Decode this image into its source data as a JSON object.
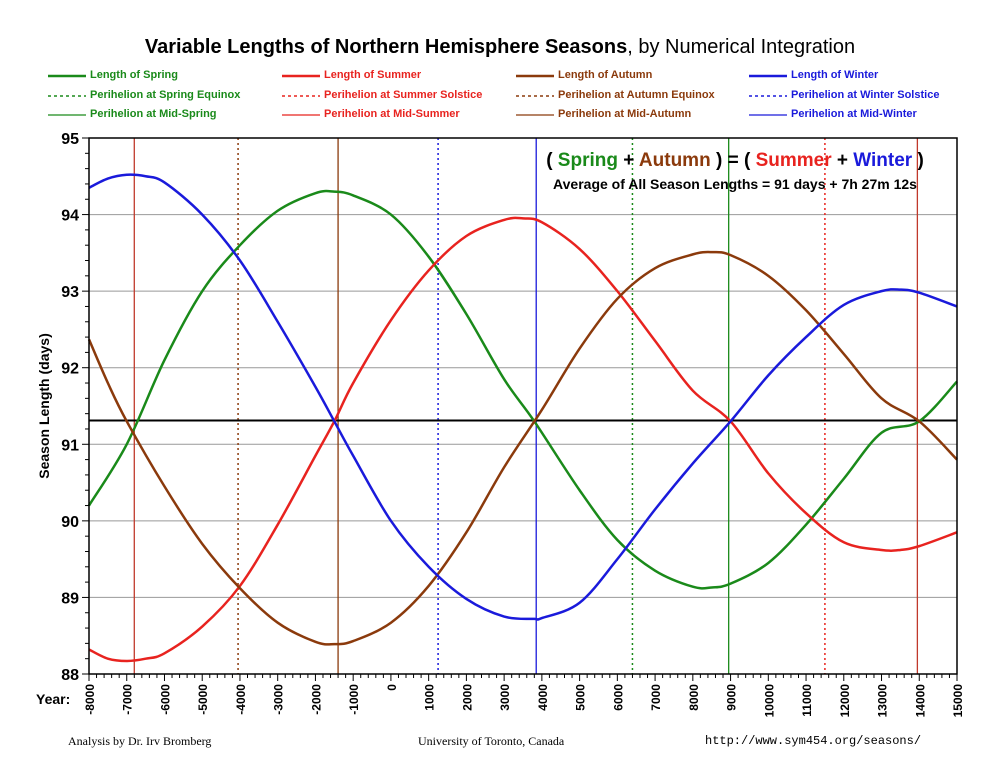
{
  "title_main": "Variable Lengths of Northern Hemisphere Seasons",
  "title_sub": ", by Numerical Integration",
  "colors": {
    "spring": "#1a8a1a",
    "summer": "#e8231f",
    "autumn": "#8b3a0c",
    "winter": "#1a1adb"
  },
  "legend": [
    {
      "label": "Length of Spring",
      "color": "#1a8a1a",
      "style": "thick"
    },
    {
      "label": "Length of Summer",
      "color": "#e8231f",
      "style": "thick"
    },
    {
      "label": "Length of Autumn",
      "color": "#8b3a0c",
      "style": "thick"
    },
    {
      "label": "Length of Winter",
      "color": "#1a1adb",
      "style": "thick"
    },
    {
      "label": "Perihelion at Spring Equinox",
      "color": "#1a8a1a",
      "style": "dotted"
    },
    {
      "label": "Perihelion at Summer Solstice",
      "color": "#e8231f",
      "style": "dotted"
    },
    {
      "label": "Perihelion at Autumn Equinox",
      "color": "#8b3a0c",
      "style": "dotted"
    },
    {
      "label": "Perihelion at Winter Solstice",
      "color": "#1a1adb",
      "style": "dotted"
    },
    {
      "label": "Perihelion at Mid-Spring",
      "color": "#1a8a1a",
      "style": "thin"
    },
    {
      "label": "Perihelion at Mid-Summer",
      "color": "#e8231f",
      "style": "thin"
    },
    {
      "label": "Perihelion at Mid-Autumn",
      "color": "#8b3a0c",
      "style": "thin"
    },
    {
      "label": "Perihelion at Mid-Winter",
      "color": "#1a1adb",
      "style": "thin"
    }
  ],
  "equation": {
    "open": "( ",
    "spring": "Spring",
    "plus1": " + ",
    "autumn": "Autumn",
    "mid": " ) = ( ",
    "summer": "Summer",
    "plus2": " + ",
    "winter": "Winter",
    "close": " )"
  },
  "average_text": "Average of All Season Lengths = 91 days + 7h 27m 12s",
  "footer": {
    "left": "Analysis by Dr. Irv Bromberg",
    "center": "University of Toronto, Canada",
    "right": "http://www.sym454.org/seasons/"
  },
  "chart_data": {
    "type": "line",
    "ylabel": "Season Length (days)",
    "xlabel": "Year:",
    "xlim": [
      -8000,
      15000
    ],
    "ylim": [
      88,
      95
    ],
    "yticks": [
      88,
      89,
      90,
      91,
      92,
      93,
      94,
      95
    ],
    "xticks": [
      -8000,
      -7000,
      -6000,
      -5000,
      -4000,
      -3000,
      -2000,
      -1000,
      0,
      1000,
      2000,
      3000,
      4000,
      5000,
      6000,
      7000,
      8000,
      9000,
      10000,
      11000,
      12000,
      13000,
      14000,
      15000
    ],
    "average_line": 91.31,
    "series": [
      {
        "name": "Length of Spring",
        "color": "#1a8a1a",
        "x": [
          -8000,
          -7000,
          -6000,
          -5000,
          -4000,
          -3000,
          -2000,
          -1500,
          -1000,
          0,
          1000,
          2000,
          3000,
          3800,
          5000,
          6000,
          7000,
          8000,
          8500,
          9000,
          10000,
          11000,
          12000,
          13000,
          14000,
          15000
        ],
        "y": [
          90.2,
          91.0,
          92.1,
          93.0,
          93.6,
          94.05,
          94.28,
          94.3,
          94.25,
          94.0,
          93.45,
          92.7,
          91.85,
          91.3,
          90.4,
          89.75,
          89.35,
          89.14,
          89.13,
          89.18,
          89.45,
          89.95,
          90.55,
          91.15,
          91.3,
          91.82
        ]
      },
      {
        "name": "Length of Summer",
        "color": "#e8231f",
        "x": [
          -8000,
          -7500,
          -7000,
          -6500,
          -6000,
          -5000,
          -4000,
          -3000,
          -2000,
          -1500,
          -1000,
          0,
          1000,
          2000,
          3000,
          3500,
          4000,
          5000,
          6000,
          7000,
          8000,
          9000,
          10000,
          11000,
          12000,
          13000,
          13500,
          14000,
          15000
        ],
        "y": [
          88.32,
          88.2,
          88.17,
          88.2,
          88.27,
          88.62,
          89.15,
          89.95,
          90.85,
          91.3,
          91.8,
          92.62,
          93.27,
          93.72,
          93.93,
          93.95,
          93.9,
          93.55,
          93.0,
          92.35,
          91.7,
          91.3,
          90.62,
          90.1,
          89.72,
          89.62,
          89.62,
          89.67,
          89.85
        ]
      },
      {
        "name": "Length of Autumn",
        "color": "#8b3a0c",
        "x": [
          -8000,
          -7500,
          -7000,
          -6000,
          -5000,
          -4000,
          -3000,
          -2000,
          -1500,
          -1000,
          0,
          1000,
          2000,
          3000,
          4000,
          5000,
          6000,
          7000,
          8000,
          8500,
          9000,
          10000,
          11000,
          12000,
          13000,
          14000,
          15000
        ],
        "y": [
          92.37,
          91.8,
          91.3,
          90.45,
          89.7,
          89.12,
          88.67,
          88.42,
          88.39,
          88.43,
          88.67,
          89.15,
          89.85,
          90.7,
          91.45,
          92.25,
          92.9,
          93.3,
          93.48,
          93.51,
          93.47,
          93.2,
          92.75,
          92.18,
          91.6,
          91.3,
          90.8
        ]
      },
      {
        "name": "Length of Winter",
        "color": "#1a1adb",
        "x": [
          -8000,
          -7500,
          -7000,
          -6500,
          -6000,
          -5000,
          -4000,
          -3000,
          -2000,
          -1500,
          -1000,
          0,
          1000,
          2000,
          3000,
          3800,
          4000,
          5000,
          6000,
          7000,
          8000,
          9000,
          10000,
          11000,
          12000,
          13000,
          13500,
          14000,
          15000
        ],
        "y": [
          94.35,
          94.47,
          94.52,
          94.5,
          94.42,
          94.0,
          93.4,
          92.6,
          91.75,
          91.3,
          90.85,
          90.0,
          89.4,
          88.98,
          88.75,
          88.72,
          88.73,
          88.93,
          89.5,
          90.15,
          90.75,
          91.3,
          91.9,
          92.4,
          92.82,
          93.0,
          93.02,
          92.98,
          92.8
        ]
      }
    ],
    "vlines": [
      {
        "x": -6800,
        "color": "#c0392b",
        "style": "thin"
      },
      {
        "x": -4050,
        "color": "#8b3a0c",
        "style": "dotted"
      },
      {
        "x": -1400,
        "color": "#8b3a0c",
        "style": "thin"
      },
      {
        "x": 1250,
        "color": "#1a1adb",
        "style": "dotted"
      },
      {
        "x": 3850,
        "color": "#1a1adb",
        "style": "thin"
      },
      {
        "x": 6400,
        "color": "#1a8a1a",
        "style": "dotted"
      },
      {
        "x": 8950,
        "color": "#1a8a1a",
        "style": "thin"
      },
      {
        "x": 11500,
        "color": "#e8231f",
        "style": "dotted"
      },
      {
        "x": 13950,
        "color": "#c0392b",
        "style": "thin"
      }
    ]
  }
}
